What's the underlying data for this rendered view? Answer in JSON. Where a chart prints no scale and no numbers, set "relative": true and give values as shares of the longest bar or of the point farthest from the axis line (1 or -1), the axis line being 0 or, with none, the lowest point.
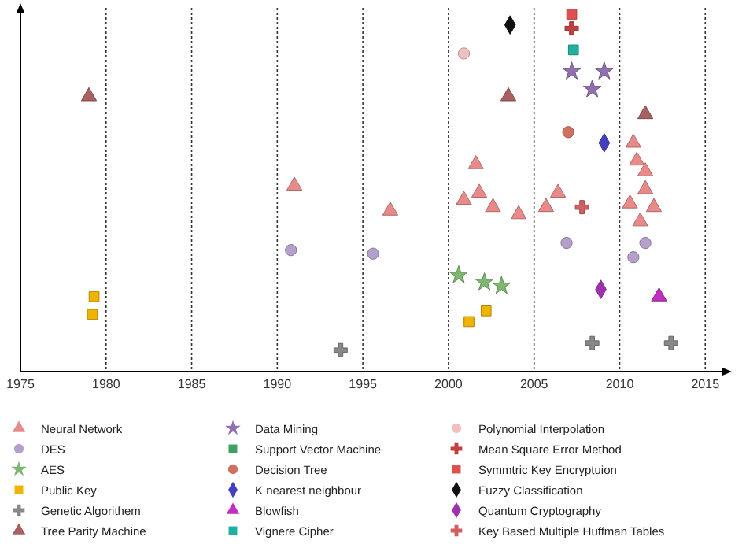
{
  "chart_data": {
    "type": "scatter",
    "relative": true,
    "grid": "x",
    "legend": "bottom",
    "xlim": [
      1975,
      2016
    ],
    "xticks": [
      1975,
      1980,
      1985,
      1990,
      1995,
      2000,
      2005,
      2010,
      2015
    ],
    "series": [
      {
        "name": "Neural  Network",
        "color": "#e88a8a",
        "marker": "triangle",
        "x": [
          1991.0,
          1996.6,
          2001.6,
          2000.9,
          2001.8,
          2002.6,
          2004.1,
          2005.7,
          2006.4,
          2010.8,
          2011.0,
          2011.5,
          2011.5,
          2010.6,
          2012.0,
          2011.2
        ],
        "values": [
          0.52,
          0.45,
          0.58,
          0.48,
          0.5,
          0.46,
          0.44,
          0.46,
          0.5,
          0.64,
          0.59,
          0.56,
          0.51,
          0.47,
          0.46,
          0.42
        ]
      },
      {
        "name": "DES",
        "color": "#b4a0cc",
        "marker": "circle",
        "x": [
          1990.8,
          1995.6,
          2006.9,
          2011.5,
          2010.8
        ],
        "values": [
          0.34,
          0.33,
          0.36,
          0.36,
          0.32
        ]
      },
      {
        "name": "AES",
        "color": "#7cb870",
        "marker": "star",
        "x": [
          2000.6,
          2002.1,
          2003.1
        ],
        "values": [
          0.27,
          0.25,
          0.24
        ]
      },
      {
        "name": "Public Key",
        "color": "#f0b400",
        "marker": "square",
        "x": [
          1979.3,
          1979.2,
          2001.2,
          2002.2
        ],
        "values": [
          0.21,
          0.16,
          0.14,
          0.17
        ]
      },
      {
        "name": "Genetic Algorithem",
        "color": "#888888",
        "marker": "cross",
        "x": [
          1993.7,
          2008.4,
          2013.0
        ],
        "values": [
          0.06,
          0.08,
          0.08
        ]
      },
      {
        "name": "Tree Parity Machine",
        "color": "#a86060",
        "marker": "triangle",
        "x": [
          1979.0,
          2003.5,
          2011.5
        ],
        "values": [
          0.77,
          0.77,
          0.72
        ]
      },
      {
        "name": "Data Mining",
        "color": "#9070b0",
        "marker": "star",
        "x": [
          2007.2,
          2009.1,
          2008.4
        ],
        "values": [
          0.84,
          0.84,
          0.79
        ]
      },
      {
        "name": "Support Vector Machine",
        "color": "#40a060",
        "marker": "square"
      },
      {
        "name": "Decision Tree",
        "color": "#d07060",
        "marker": "circle",
        "x": [
          2007.0
        ],
        "values": [
          0.67
        ]
      },
      {
        "name": "K nearest neighbour",
        "color": "#4040c0",
        "marker": "diamond",
        "x": [
          2009.1
        ],
        "values": [
          0.64
        ]
      },
      {
        "name": "Blowfish",
        "color": "#c030c0",
        "marker": "triangle",
        "x": [
          2012.3
        ],
        "values": [
          0.21
        ]
      },
      {
        "name": "Vignere Cipher",
        "color": "#20b0a0",
        "marker": "square",
        "x": [
          2007.3
        ],
        "values": [
          0.9
        ]
      },
      {
        "name": "Polynomial Interpolation",
        "color": "#f0c0c0",
        "marker": "circle",
        "x": [
          2000.9
        ],
        "values": [
          0.89
        ]
      },
      {
        "name": "Mean Square Error Method",
        "color": "#c04040",
        "marker": "cross",
        "x": [
          2007.2
        ],
        "values": [
          0.96
        ]
      },
      {
        "name": "Symmtric Key Encryptuion",
        "color": "#e05050",
        "marker": "square",
        "x": [
          2007.2
        ],
        "values": [
          1.0
        ]
      },
      {
        "name": "Fuzzy Classification",
        "color": "#111111",
        "marker": "diamond",
        "x": [
          2003.6
        ],
        "values": [
          0.97
        ]
      },
      {
        "name": "Quantum Cryptography",
        "color": "#a030b0",
        "marker": "diamond",
        "x": [
          2008.9
        ],
        "values": [
          0.23
        ]
      },
      {
        "name": "Key Based Multiple Huffman Tables",
        "color": "#d06060",
        "marker": "cross",
        "x": [
          2007.8
        ],
        "values": [
          0.46
        ]
      }
    ]
  }
}
